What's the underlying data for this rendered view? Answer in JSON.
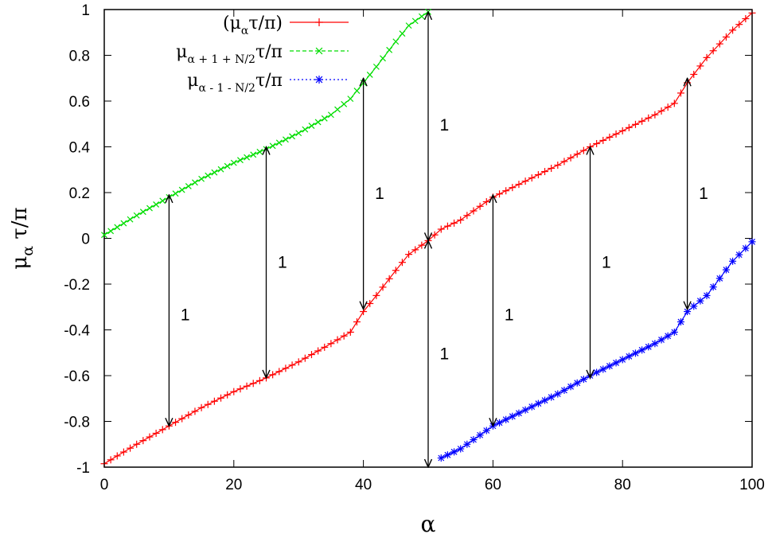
{
  "chart_data": {
    "type": "line",
    "title": "",
    "xlabel": "α",
    "ylabel": {
      "base": "μ",
      "sub": "α",
      "rest": " τ/π"
    },
    "xlim": [
      0,
      100
    ],
    "ylim": [
      -1,
      1
    ],
    "xticks": [
      "0",
      "20",
      "40",
      "60",
      "80",
      "100"
    ],
    "xtick_values": [
      0,
      20,
      40,
      60,
      80,
      100
    ],
    "yticks": [
      "-1",
      "-0.8",
      "-0.6",
      "-0.4",
      "-0.2",
      "0",
      "0.2",
      "0.4",
      "0.6",
      "0.8",
      "1"
    ],
    "ytick_values": [
      -1,
      -0.8,
      -0.6,
      -0.4,
      -0.2,
      0,
      0.2,
      0.4,
      0.6,
      0.8,
      1
    ],
    "grid": false,
    "legend_position": "top-right",
    "series": [
      {
        "legend": {
          "pre": "(μ",
          "sub": "α",
          "post": "τ/π)"
        },
        "color": "#ff0000",
        "marker": "plus",
        "x_range": [
          0,
          100
        ],
        "anchors": [
          [
            0,
            -0.985
          ],
          [
            5,
            -0.9
          ],
          [
            10,
            -0.82
          ],
          [
            15,
            -0.74
          ],
          [
            20,
            -0.67
          ],
          [
            25,
            -0.61
          ],
          [
            30,
            -0.54
          ],
          [
            35,
            -0.46
          ],
          [
            38,
            -0.41
          ],
          [
            40,
            -0.32
          ],
          [
            42,
            -0.25
          ],
          [
            45,
            -0.14
          ],
          [
            47,
            -0.07
          ],
          [
            50,
            -0.01
          ],
          [
            52,
            0.04
          ],
          [
            55,
            0.08
          ],
          [
            60,
            0.18
          ],
          [
            65,
            0.25
          ],
          [
            70,
            0.32
          ],
          [
            75,
            0.4
          ],
          [
            80,
            0.47
          ],
          [
            85,
            0.54
          ],
          [
            88,
            0.59
          ],
          [
            90,
            0.68
          ],
          [
            93,
            0.79
          ],
          [
            97,
            0.91
          ],
          [
            100,
            0.985
          ]
        ]
      },
      {
        "legend": {
          "pre": "μ",
          "sub": "α + 1 + N/2",
          "post": "τ/π"
        },
        "color": "#00dd00",
        "marker": "cross",
        "x_range": [
          0,
          50
        ],
        "anchors": [
          [
            0,
            0.015
          ],
          [
            5,
            0.1
          ],
          [
            10,
            0.18
          ],
          [
            15,
            0.26
          ],
          [
            20,
            0.33
          ],
          [
            25,
            0.39
          ],
          [
            30,
            0.46
          ],
          [
            35,
            0.54
          ],
          [
            38,
            0.61
          ],
          [
            40,
            0.68
          ],
          [
            42,
            0.75
          ],
          [
            45,
            0.86
          ],
          [
            47,
            0.93
          ],
          [
            50,
            0.99
          ]
        ]
      },
      {
        "legend": {
          "pre": "μ",
          "sub": "α - 1 - N/2",
          "post": "τ/π"
        },
        "color": "#0000ff",
        "marker": "star",
        "x_range": [
          52,
          100
        ],
        "anchors": [
          [
            52,
            -0.96
          ],
          [
            55,
            -0.92
          ],
          [
            60,
            -0.82
          ],
          [
            65,
            -0.75
          ],
          [
            70,
            -0.68
          ],
          [
            75,
            -0.6
          ],
          [
            80,
            -0.53
          ],
          [
            85,
            -0.46
          ],
          [
            88,
            -0.41
          ],
          [
            90,
            -0.32
          ],
          [
            93,
            -0.25
          ],
          [
            97,
            -0.1
          ],
          [
            100,
            -0.015
          ]
        ]
      }
    ],
    "annotations": [
      {
        "type": "double-arrow",
        "x": 10,
        "y1": -0.82,
        "y2": 0.19,
        "label": "1",
        "label_pos": [
          12.5,
          -0.33
        ]
      },
      {
        "type": "double-arrow",
        "x": 25,
        "y1": -0.61,
        "y2": 0.4,
        "label": "1",
        "label_pos": [
          27.5,
          -0.1
        ]
      },
      {
        "type": "double-arrow",
        "x": 40,
        "y1": -0.31,
        "y2": 0.7,
        "label": "1",
        "label_pos": [
          42.5,
          0.2
        ]
      },
      {
        "type": "double-arrow",
        "x": 50,
        "y1": -0.01,
        "y2": 0.99,
        "label": "1",
        "label_pos": [
          52.5,
          0.5
        ]
      },
      {
        "type": "double-arrow",
        "x": 50,
        "y1": -1.0,
        "y2": -0.01,
        "label": "1",
        "label_pos": [
          52.5,
          -0.5
        ]
      },
      {
        "type": "double-arrow",
        "x": 60,
        "y1": -0.82,
        "y2": 0.19,
        "label": "1",
        "label_pos": [
          62.5,
          -0.33
        ]
      },
      {
        "type": "double-arrow",
        "x": 75,
        "y1": -0.61,
        "y2": 0.4,
        "label": "1",
        "label_pos": [
          77.5,
          -0.1
        ]
      },
      {
        "type": "double-arrow",
        "x": 90,
        "y1": -0.31,
        "y2": 0.7,
        "label": "1",
        "label_pos": [
          92.5,
          0.2
        ]
      }
    ]
  }
}
